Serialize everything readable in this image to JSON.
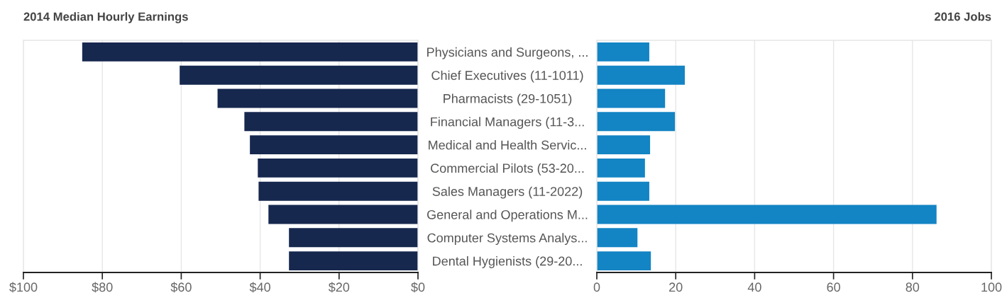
{
  "chart_data": [
    {
      "type": "bar",
      "orientation": "horizontal",
      "title": "2014 Median Hourly Earnings",
      "categories": [
        null,
        null,
        null,
        null,
        null,
        null,
        null,
        null,
        null,
        null
      ],
      "values": [
        85.1,
        60.4,
        50.8,
        44.0,
        42.6,
        40.6,
        40.4,
        37.9,
        32.7,
        32.7
      ],
      "color": "#17284f",
      "xlim": [
        100,
        0
      ],
      "xticks": [
        {
          "value": 100,
          "label": "$100"
        },
        {
          "value": 80,
          "label": "$80"
        },
        {
          "value": 60,
          "label": "$60"
        },
        {
          "value": 40,
          "label": "$40"
        },
        {
          "value": 20,
          "label": "$20"
        },
        {
          "value": 0,
          "label": "$0"
        }
      ],
      "grid": "x",
      "tick_labels": "x"
    },
    {
      "type": "bar",
      "orientation": "horizontal",
      "title": "2016 Jobs",
      "categories": [
        "Physicians and Surgeons, ...",
        "Chief Executives (11-1011)",
        "Pharmacists (29-1051)",
        "Financial Managers (11-3...",
        "Medical and Health Servic...",
        "Commercial Pilots (53-20...",
        "Sales Managers (11-2022)",
        "General and Operations M...",
        "Computer Systems Analys...",
        "Dental Hygienists (29-20..."
      ],
      "values": [
        13.3,
        22.3,
        17.3,
        19.8,
        13.5,
        12.2,
        13.3,
        86.1,
        10.3,
        13.7
      ],
      "color": "#1384c4",
      "xlim": [
        0,
        100
      ],
      "xticks": [
        0,
        20,
        40,
        60,
        80,
        100
      ],
      "grid": "x"
    }
  ]
}
